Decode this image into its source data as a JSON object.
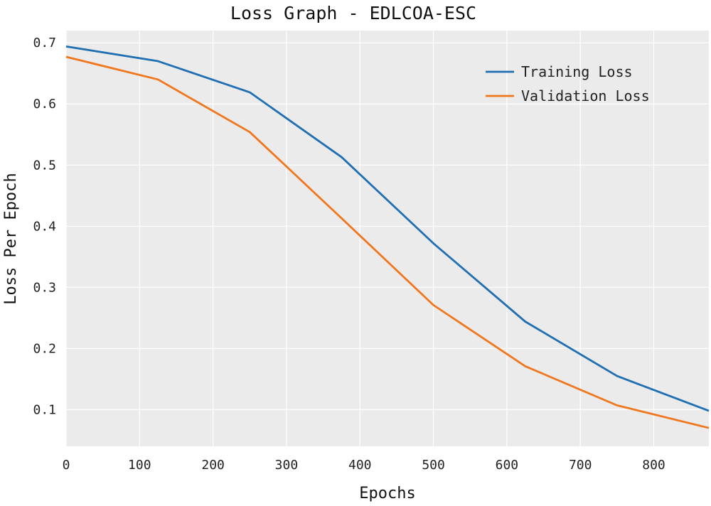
{
  "chart_data": {
    "type": "line",
    "title": "Loss Graph - EDLCOA-ESC",
    "xlabel": "Epochs",
    "ylabel": "Loss Per Epoch",
    "xlim": [
      0,
      875
    ],
    "ylim": [
      0.04,
      0.72
    ],
    "xticks": [
      0,
      100,
      200,
      300,
      400,
      500,
      600,
      700,
      800
    ],
    "yticks": [
      0.1,
      0.2,
      0.3,
      0.4,
      0.5,
      0.6,
      0.7
    ],
    "grid": true,
    "legend_position": "top-right",
    "series": [
      {
        "name": "Training Loss",
        "color": "#1f6fb2",
        "x": [
          0,
          125,
          250,
          375,
          500,
          625,
          750,
          875
        ],
        "y": [
          0.694,
          0.67,
          0.619,
          0.513,
          0.372,
          0.244,
          0.155,
          0.098
        ]
      },
      {
        "name": "Validation Loss",
        "color": "#f0771e",
        "x": [
          0,
          125,
          250,
          375,
          500,
          625,
          750,
          875
        ],
        "y": [
          0.677,
          0.64,
          0.554,
          0.413,
          0.271,
          0.171,
          0.107,
          0.07
        ]
      }
    ]
  }
}
